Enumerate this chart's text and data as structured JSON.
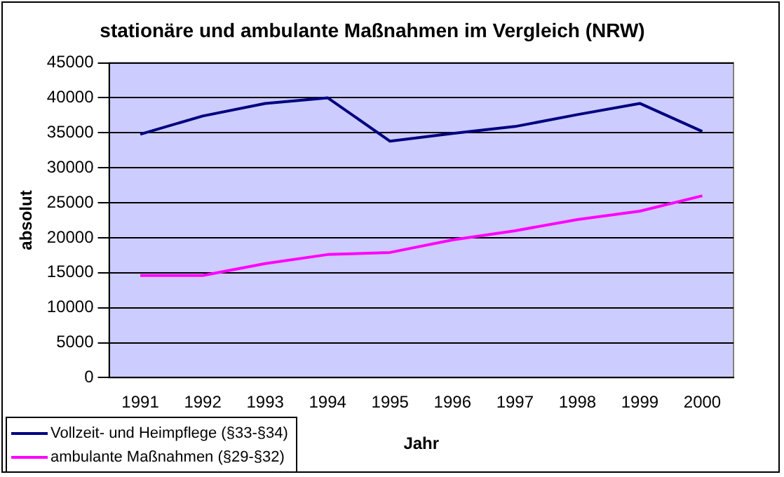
{
  "chart_data": {
    "type": "line",
    "title": "stationäre und ambulante Maßnahmen im Vergleich (NRW)",
    "xlabel": "Jahr",
    "ylabel": "absolut",
    "categories": [
      "1991",
      "1992",
      "1993",
      "1994",
      "1995",
      "1996",
      "1997",
      "1998",
      "1999",
      "2000"
    ],
    "series": [
      {
        "name": "Vollzeit- und Heimpflege (§33-§34)",
        "color": "#000080",
        "values": [
          34800,
          37400,
          39200,
          40000,
          33800,
          34900,
          35900,
          37600,
          39200,
          35200
        ]
      },
      {
        "name": "ambulante Maßnahmen (§29-§32)",
        "color": "#ff00ff",
        "values": [
          14600,
          14600,
          16300,
          17600,
          17900,
          19700,
          21000,
          22600,
          23800,
          26000
        ]
      }
    ],
    "ylim": [
      0,
      45000
    ],
    "yticks": [
      0,
      5000,
      10000,
      15000,
      20000,
      25000,
      30000,
      35000,
      40000,
      45000
    ],
    "grid": "y",
    "legend": "bottom left",
    "marker": "none",
    "line_style": "solid"
  }
}
